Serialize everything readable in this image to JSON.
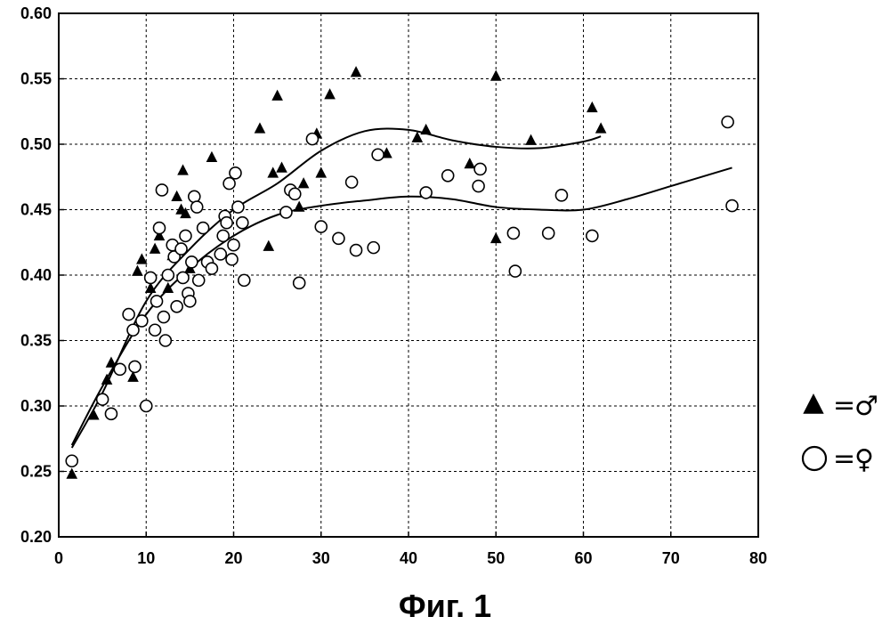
{
  "caption": "Фиг. 1",
  "chart_data": {
    "type": "scatter",
    "title": "",
    "xlabel": "",
    "ylabel": "",
    "xlim": [
      0,
      80
    ],
    "ylim": [
      0.2,
      0.6
    ],
    "x_ticks": [
      0,
      10,
      20,
      30,
      40,
      50,
      60,
      70,
      80
    ],
    "y_ticks": [
      0.2,
      0.25,
      0.3,
      0.35,
      0.4,
      0.45,
      0.5,
      0.55,
      0.6
    ],
    "x_tick_labels": [
      "0",
      "10",
      "20",
      "30",
      "40",
      "50",
      "60",
      "70",
      "80"
    ],
    "y_tick_labels": [
      "0.20",
      "0.25",
      "0.30",
      "0.35",
      "0.40",
      "0.45",
      "0.50",
      "0.55",
      "0.60"
    ],
    "grid": true,
    "grid_style": "dashed",
    "legend_position": "right",
    "series": [
      {
        "name": "♂",
        "legend_symbol": "▲",
        "legend_eq": "=",
        "marker": "filled-triangle",
        "points": [
          [
            1.5,
            0.248
          ],
          [
            4,
            0.293
          ],
          [
            5.5,
            0.32
          ],
          [
            6,
            0.333
          ],
          [
            8.5,
            0.322
          ],
          [
            9,
            0.403
          ],
          [
            9.5,
            0.412
          ],
          [
            10.5,
            0.39
          ],
          [
            11,
            0.42
          ],
          [
            11.5,
            0.43
          ],
          [
            12.5,
            0.39
          ],
          [
            13,
            0.415
          ],
          [
            13.5,
            0.46
          ],
          [
            14,
            0.45
          ],
          [
            14.2,
            0.48
          ],
          [
            14.5,
            0.447
          ],
          [
            15,
            0.405
          ],
          [
            17.5,
            0.49
          ],
          [
            23,
            0.512
          ],
          [
            24,
            0.422
          ],
          [
            24.5,
            0.478
          ],
          [
            25,
            0.537
          ],
          [
            25.5,
            0.482
          ],
          [
            27,
            0.463
          ],
          [
            27.5,
            0.452
          ],
          [
            28,
            0.47
          ],
          [
            29.5,
            0.508
          ],
          [
            30,
            0.478
          ],
          [
            31,
            0.538
          ],
          [
            34,
            0.555
          ],
          [
            37.5,
            0.493
          ],
          [
            41,
            0.505
          ],
          [
            42,
            0.511
          ],
          [
            47,
            0.485
          ],
          [
            50,
            0.428
          ],
          [
            50,
            0.552
          ],
          [
            54,
            0.503
          ],
          [
            61,
            0.528
          ],
          [
            62,
            0.512
          ]
        ],
        "trend": [
          [
            1.5,
            0.268
          ],
          [
            5,
            0.31
          ],
          [
            10,
            0.38
          ],
          [
            15,
            0.42
          ],
          [
            20,
            0.45
          ],
          [
            25,
            0.47
          ],
          [
            30,
            0.495
          ],
          [
            35,
            0.51
          ],
          [
            40,
            0.511
          ],
          [
            45,
            0.503
          ],
          [
            50,
            0.498
          ],
          [
            55,
            0.497
          ],
          [
            60,
            0.502
          ],
          [
            62,
            0.506
          ]
        ]
      },
      {
        "name": "♀",
        "legend_symbol": "○",
        "legend_eq": "=",
        "marker": "open-circle",
        "points": [
          [
            1.5,
            0.258
          ],
          [
            5,
            0.305
          ],
          [
            6,
            0.294
          ],
          [
            7,
            0.328
          ],
          [
            8,
            0.37
          ],
          [
            8.5,
            0.358
          ],
          [
            8.7,
            0.33
          ],
          [
            9.5,
            0.365
          ],
          [
            10,
            0.3
          ],
          [
            10.5,
            0.398
          ],
          [
            11,
            0.358
          ],
          [
            11.2,
            0.38
          ],
          [
            11.5,
            0.436
          ],
          [
            11.8,
            0.465
          ],
          [
            12,
            0.368
          ],
          [
            12.2,
            0.35
          ],
          [
            12.5,
            0.4
          ],
          [
            13,
            0.423
          ],
          [
            13.2,
            0.414
          ],
          [
            13.5,
            0.376
          ],
          [
            14,
            0.42
          ],
          [
            14.2,
            0.398
          ],
          [
            14.5,
            0.43
          ],
          [
            14.8,
            0.386
          ],
          [
            15,
            0.38
          ],
          [
            15.2,
            0.41
          ],
          [
            15.5,
            0.46
          ],
          [
            15.8,
            0.452
          ],
          [
            16,
            0.396
          ],
          [
            16.5,
            0.436
          ],
          [
            17,
            0.41
          ],
          [
            17.5,
            0.405
          ],
          [
            18.5,
            0.416
          ],
          [
            18.8,
            0.43
          ],
          [
            19,
            0.445
          ],
          [
            19.2,
            0.44
          ],
          [
            19.5,
            0.47
          ],
          [
            19.8,
            0.412
          ],
          [
            20,
            0.423
          ],
          [
            20.2,
            0.478
          ],
          [
            20.5,
            0.452
          ],
          [
            21,
            0.44
          ],
          [
            21.2,
            0.396
          ],
          [
            26,
            0.448
          ],
          [
            26.5,
            0.465
          ],
          [
            27,
            0.462
          ],
          [
            27.5,
            0.394
          ],
          [
            29,
            0.504
          ],
          [
            30,
            0.437
          ],
          [
            32,
            0.428
          ],
          [
            33.5,
            0.471
          ],
          [
            34,
            0.419
          ],
          [
            36,
            0.421
          ],
          [
            36.5,
            0.492
          ],
          [
            42,
            0.463
          ],
          [
            44.5,
            0.476
          ],
          [
            48,
            0.468
          ],
          [
            48.2,
            0.481
          ],
          [
            52,
            0.432
          ],
          [
            52.2,
            0.403
          ],
          [
            56,
            0.432
          ],
          [
            57.5,
            0.461
          ],
          [
            61,
            0.43
          ],
          [
            76.5,
            0.517
          ],
          [
            77,
            0.453
          ]
        ],
        "trend": [
          [
            1.5,
            0.27
          ],
          [
            5,
            0.315
          ],
          [
            10,
            0.37
          ],
          [
            15,
            0.405
          ],
          [
            20,
            0.43
          ],
          [
            25,
            0.446
          ],
          [
            30,
            0.453
          ],
          [
            35,
            0.457
          ],
          [
            40,
            0.46
          ],
          [
            45,
            0.458
          ],
          [
            50,
            0.452
          ],
          [
            55,
            0.45
          ],
          [
            60,
            0.45
          ],
          [
            65,
            0.458
          ],
          [
            70,
            0.468
          ],
          [
            75,
            0.478
          ],
          [
            77,
            0.482
          ]
        ]
      }
    ]
  }
}
